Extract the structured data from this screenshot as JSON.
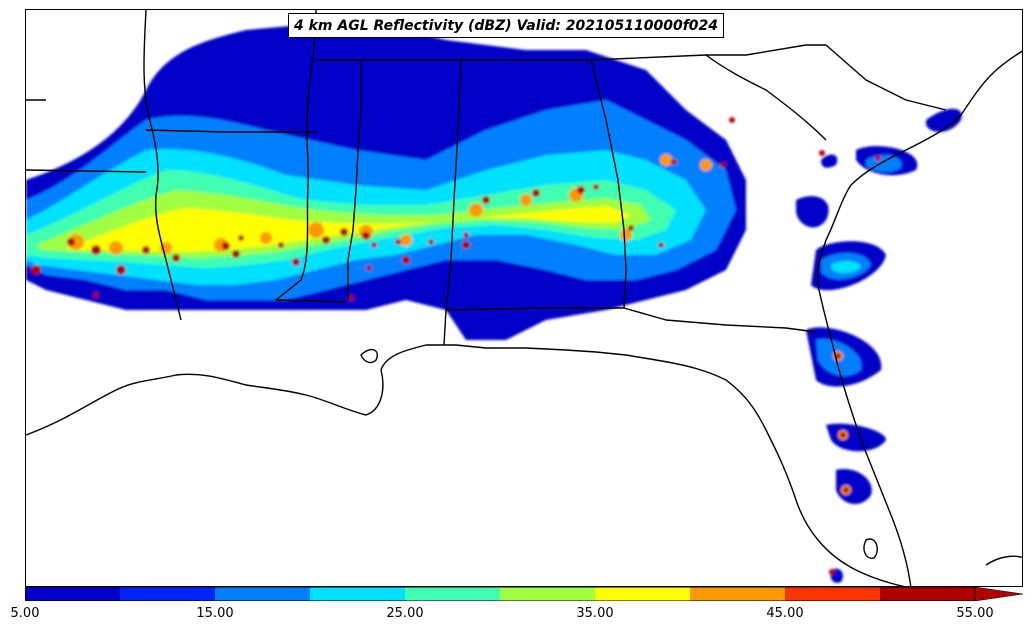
{
  "title": "4 km AGL Reflectivity (dBZ) Valid: 202105110000f024",
  "colorbar": {
    "ticks": [
      "5.00",
      "15.00",
      "25.00",
      "35.00",
      "45.00",
      "55.00"
    ],
    "colors": [
      "#0000c8",
      "#0022ff",
      "#0080ff",
      "#00e0ff",
      "#40ffb0",
      "#a0ff40",
      "#ffff00",
      "#ff9900",
      "#ff3300",
      "#b00000"
    ],
    "extend": "max"
  },
  "map": {
    "region": "Southeastern United States",
    "projection": "regional",
    "land_color": "#ffffff",
    "outline_color": "#000000"
  }
}
